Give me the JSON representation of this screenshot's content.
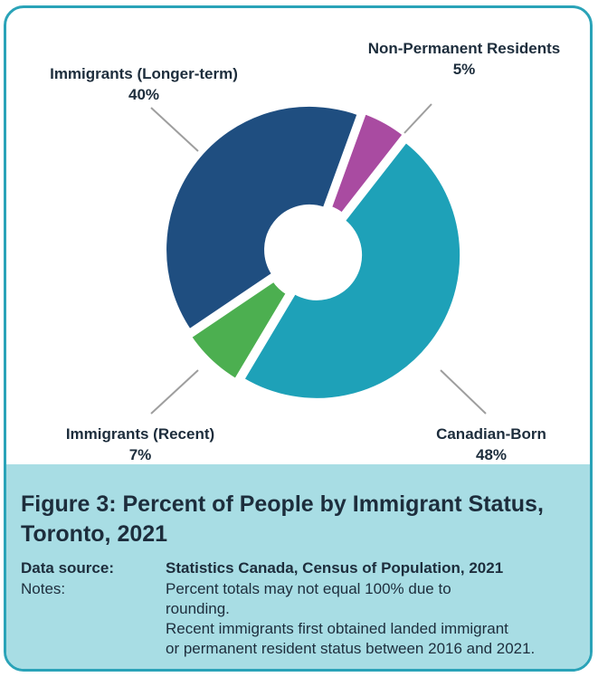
{
  "chart_data": {
    "type": "pie",
    "variant": "donut",
    "title": "Figure 3: Percent of People by Immigrant Status, Toronto, 2021",
    "slices": [
      {
        "name": "Non-Permanent Residents",
        "value": 5,
        "value_label": "5%",
        "color": "#a94ba1"
      },
      {
        "name": "Canadian-Born",
        "value": 48,
        "value_label": "48%",
        "color": "#1ea1b8"
      },
      {
        "name": "Immigrants (Recent)",
        "value": 7,
        "value_label": "7%",
        "color": "#4caf50"
      },
      {
        "name": "Immigrants (Longer-term)",
        "value": 40,
        "value_label": "40%",
        "color": "#1f4e80"
      }
    ]
  },
  "caption": {
    "title": "Figure 3: Percent of People by Immigrant Status, Toronto, 2021",
    "source_label": "Data source:",
    "source_value": "Statistics Canada, Census of Population, 2021",
    "notes_label": "Notes:",
    "notes_lines": [
      "Percent totals may not equal 100% due to",
      "rounding.",
      "Recent immigrants first obtained landed immigrant",
      "or permanent resident status between 2016 and 2021."
    ]
  },
  "colors": {
    "border": "#2aa3b8",
    "caption_bg": "#a8dde4",
    "text": "#1d2d3c"
  }
}
